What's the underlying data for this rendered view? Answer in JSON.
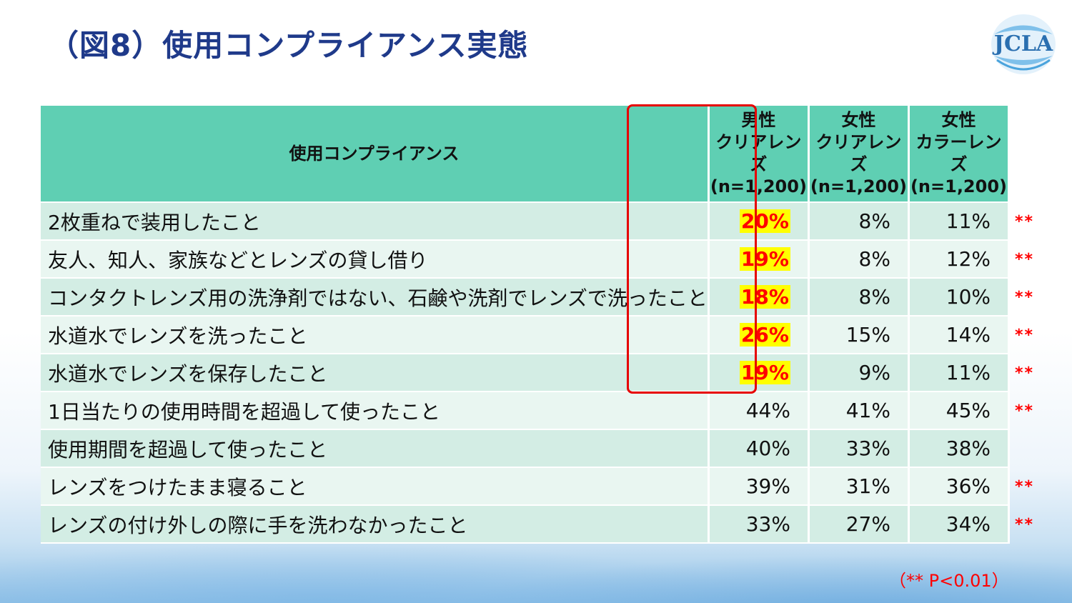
{
  "title": "（図8）使用コンプライアンス実態",
  "logo": {
    "text": "JCLA"
  },
  "table": {
    "header": {
      "label": "使用コンプライアンス",
      "columns": [
        {
          "line1": "男性",
          "line2": "クリアレンズ",
          "line3": "(n=1,200)"
        },
        {
          "line1": "女性",
          "line2": "クリアレンズ",
          "line3": "(n=1,200)"
        },
        {
          "line1": "女性",
          "line2": "カラーレンズ",
          "line3": "(n=1,200)"
        }
      ]
    },
    "rows": [
      {
        "label": "2枚重ねで装用したこと",
        "male_clear": "20%",
        "female_clear": "8%",
        "female_color": "11%",
        "sig": "**",
        "highlight": true
      },
      {
        "label": "友人、知人、家族などとレンズの貸し借り",
        "male_clear": "19%",
        "female_clear": "8%",
        "female_color": "12%",
        "sig": "**",
        "highlight": true
      },
      {
        "label": "コンタクトレンズ用の洗浄剤ではない、石鹸や洗剤でレンズで洗ったこと",
        "male_clear": "18%",
        "female_clear": "8%",
        "female_color": "10%",
        "sig": "**",
        "highlight": true
      },
      {
        "label": "水道水でレンズを洗ったこと",
        "male_clear": "26%",
        "female_clear": "15%",
        "female_color": "14%",
        "sig": "**",
        "highlight": true
      },
      {
        "label": "水道水でレンズを保存したこと",
        "male_clear": "19%",
        "female_clear": "9%",
        "female_color": "11%",
        "sig": "**",
        "highlight": true
      },
      {
        "label": "1日当たりの使用時間を超過して使ったこと",
        "male_clear": "44%",
        "female_clear": "41%",
        "female_color": "45%",
        "sig": "**",
        "highlight": false
      },
      {
        "label": "使用期間を超過して使ったこと",
        "male_clear": "40%",
        "female_clear": "33%",
        "female_color": "38%",
        "sig": "",
        "highlight": false
      },
      {
        "label": "レンズをつけたまま寝ること",
        "male_clear": "39%",
        "female_clear": "31%",
        "female_color": "36%",
        "sig": "**",
        "highlight": false
      },
      {
        "label": "レンズの付け外しの際に手を洗わなかったこと",
        "male_clear": "33%",
        "female_clear": "27%",
        "female_color": "34%",
        "sig": "**",
        "highlight": false
      }
    ]
  },
  "footnote": "（** P<0.01）",
  "colors": {
    "header_bg": "#5fcfb3",
    "row_odd": "#d3ede4",
    "row_even": "#e9f6f1",
    "highlight_bg": "#ffff00",
    "highlight_fg": "#ff0000",
    "title": "#1f3a8a"
  }
}
